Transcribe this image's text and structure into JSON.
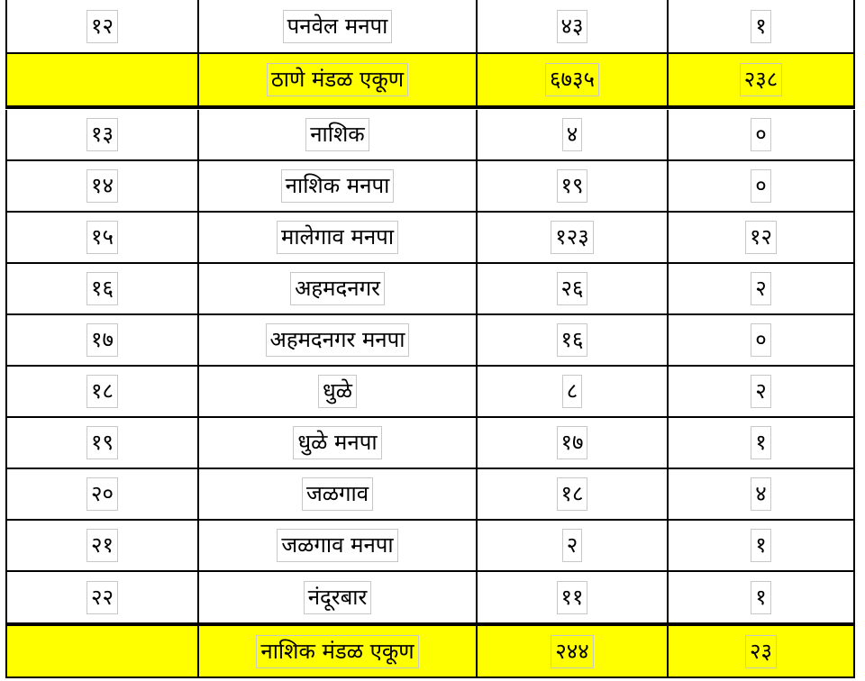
{
  "table": {
    "rows": [
      {
        "kind": "data",
        "no": "१२",
        "name": "पनवेल मनपा",
        "count": "४३",
        "deaths": "१"
      },
      {
        "kind": "total",
        "no": "",
        "name": "ठाणे मंडळ एकूण",
        "count": "६७३५",
        "deaths": "२३८"
      },
      {
        "kind": "data",
        "no": "१३",
        "name": "नाशिक",
        "count": "४",
        "deaths": "०"
      },
      {
        "kind": "data",
        "no": "१४",
        "name": "नाशिक मनपा",
        "count": "१९",
        "deaths": "०"
      },
      {
        "kind": "data",
        "no": "१५",
        "name": "मालेगाव मनपा",
        "count": "१२३",
        "deaths": "१२"
      },
      {
        "kind": "data",
        "no": "१६",
        "name": "अहमदनगर",
        "count": "२६",
        "deaths": "२"
      },
      {
        "kind": "data",
        "no": "१७",
        "name": "अहमदनगर मनपा",
        "count": "१६",
        "deaths": "०"
      },
      {
        "kind": "data",
        "no": "१८",
        "name": "धुळे",
        "count": "८",
        "deaths": "२"
      },
      {
        "kind": "data",
        "no": "१९",
        "name": "धुळे मनपा",
        "count": "१७",
        "deaths": "१"
      },
      {
        "kind": "data",
        "no": "२०",
        "name": "जळगाव",
        "count": "१८",
        "deaths": "४"
      },
      {
        "kind": "data",
        "no": "२१",
        "name": "जळगाव मनपा",
        "count": "२",
        "deaths": "१"
      },
      {
        "kind": "data",
        "no": "२२",
        "name": "नंदूरबार",
        "count": "११",
        "deaths": "१"
      },
      {
        "kind": "total",
        "no": "",
        "name": "नाशिक मंडळ एकूण",
        "count": "२४४",
        "deaths": "२३"
      }
    ]
  },
  "colors": {
    "total_row_background": "#ffff00",
    "grid_line": "#000000",
    "cell_box": "#c8c8c8"
  }
}
